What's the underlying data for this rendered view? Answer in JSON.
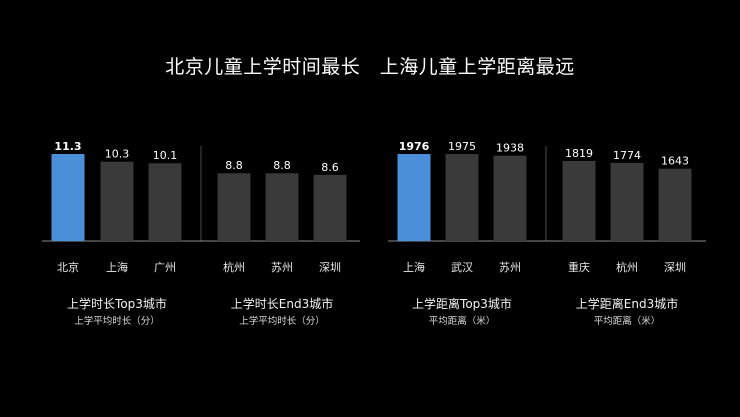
{
  "slide": {
    "title": "北京儿童上学时间最长   上海儿童上学距离最远"
  },
  "colors": {
    "background": "#000000",
    "bar_default": "#3a3a3a",
    "bar_highlight": "#4a8fd8",
    "divider": "#4a4a4a",
    "baseline": "#8a8a8a",
    "text": "#e8e8e8"
  },
  "chart_data": [
    {
      "type": "bar",
      "panel": "time",
      "ylim": [
        0,
        11.3
      ],
      "groups": [
        {
          "caption": "上学时长Top3城市",
          "subcaption": "上学平均时长（分）",
          "categories": [
            "北京",
            "上海",
            "广州"
          ],
          "values": [
            11.3,
            10.3,
            10.1
          ],
          "value_labels": [
            "11.3",
            "10.3",
            "10.1"
          ],
          "highlight_index": 0
        },
        {
          "caption": "上学时长End3城市",
          "subcaption": "上学平均时长（分）",
          "categories": [
            "杭州",
            "苏州",
            "深圳"
          ],
          "values": [
            8.8,
            8.8,
            8.6
          ],
          "value_labels": [
            "8.8",
            "8.8",
            "8.6"
          ],
          "highlight_index": -1
        }
      ]
    },
    {
      "type": "bar",
      "panel": "distance",
      "ylim": [
        0,
        1976
      ],
      "groups": [
        {
          "caption": "上学距离Top3城市",
          "subcaption": "平均距离（米）",
          "categories": [
            "上海",
            "武汉",
            "苏州"
          ],
          "values": [
            1976,
            1975,
            1938
          ],
          "value_labels": [
            "1976",
            "1975",
            "1938"
          ],
          "highlight_index": 0
        },
        {
          "caption": "上学距离End3城市",
          "subcaption": "平均距离（米）",
          "categories": [
            "重庆",
            "杭州",
            "深圳"
          ],
          "values": [
            1819,
            1774,
            1643
          ],
          "value_labels": [
            "1819",
            "1774",
            "1643"
          ],
          "highlight_index": -1
        }
      ]
    }
  ]
}
